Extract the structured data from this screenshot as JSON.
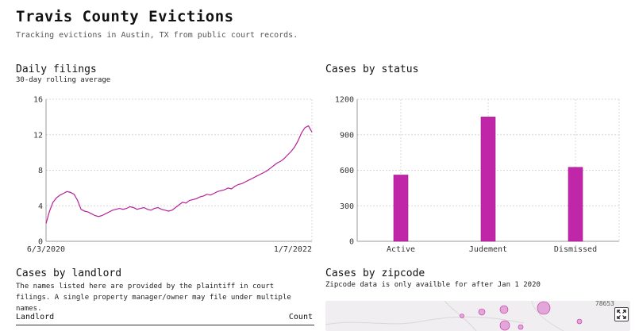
{
  "header": {
    "title": "Travis County Evictions",
    "subtitle": "Tracking evictions in Austin, TX from public court records."
  },
  "daily_filings": {
    "title": "Daily filings",
    "subtitle": "30-day rolling average",
    "x_start_label": "6/3/2020",
    "x_end_label": "1/7/2022"
  },
  "cases_by_status": {
    "title": "Cases by status"
  },
  "cases_by_landlord": {
    "title": "Cases by landlord",
    "description": "The names listed here are provided by the plaintiff in court filings. A single property manager/owner may file under multiple names.",
    "col_landlord": "Landlord",
    "col_count": "Count",
    "first_row_landlord": "",
    "first_row_count": ""
  },
  "cases_by_zipcode": {
    "title": "Cases by zipcode",
    "description": "Zipcode data is only availble for after Jan 1 2020",
    "map_label": "78653",
    "expand_icon": "expand-icon"
  },
  "colors": {
    "accent": "#c026a8",
    "line": "#b8209a"
  },
  "chart_data": [
    {
      "type": "line",
      "title": "Daily filings",
      "subtitle": "30-day rolling average",
      "x_range": [
        "6/3/2020",
        "1/7/2022"
      ],
      "x_tick_labels": [
        "6/3/2020",
        "1/7/2022"
      ],
      "y_ticks": [
        0,
        4,
        8,
        12,
        16
      ],
      "ylim": [
        0,
        16
      ],
      "grid": true,
      "series": [
        {
          "values": [
            2.0,
            3.4,
            4.4,
            4.9,
            5.2,
            5.4,
            5.6,
            5.5,
            5.3,
            4.6,
            3.6,
            3.4,
            3.3,
            3.1,
            2.9,
            2.8,
            2.9,
            3.1,
            3.3,
            3.5,
            3.6,
            3.7,
            3.6,
            3.7,
            3.9,
            3.8,
            3.6,
            3.7,
            3.8,
            3.6,
            3.5,
            3.7,
            3.8,
            3.6,
            3.5,
            3.4,
            3.5,
            3.8,
            4.1,
            4.4,
            4.3,
            4.6,
            4.7,
            4.8,
            5.0,
            5.1,
            5.3,
            5.2,
            5.4,
            5.6,
            5.7,
            5.8,
            6.0,
            5.9,
            6.2,
            6.4,
            6.5,
            6.7,
            6.9,
            7.1,
            7.3,
            7.5,
            7.7,
            7.9,
            8.2,
            8.5,
            8.8,
            9.0,
            9.3,
            9.7,
            10.1,
            10.6,
            11.3,
            12.2,
            12.8,
            13.0,
            12.3
          ]
        }
      ]
    },
    {
      "type": "bar",
      "title": "Cases by status",
      "categories": [
        "Active",
        "Judement",
        "Dismissed"
      ],
      "values": [
        560,
        1050,
        625
      ],
      "y_ticks": [
        0,
        300,
        600,
        900,
        1200
      ],
      "ylim": [
        0,
        1200
      ],
      "grid": true
    }
  ]
}
